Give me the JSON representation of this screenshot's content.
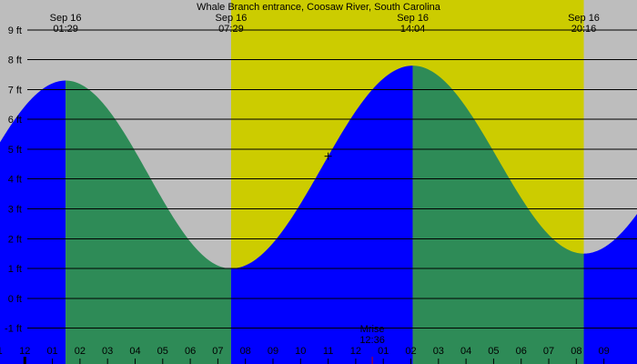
{
  "chart_data": {
    "type": "area",
    "title": "Whale Branch entrance, Coosaw River, South Carolina",
    "top_labels": [
      {
        "date": "Sep 16",
        "time": "01:29"
      },
      {
        "date": "Sep 16",
        "time": "07:29"
      },
      {
        "date": "Sep 16",
        "time": "14:04"
      },
      {
        "date": "Sep 16",
        "time": "20:16"
      }
    ],
    "x_unit": "hour of day (Sep 16)",
    "xlim": [
      -0.9,
      22.2
    ],
    "daylight": [
      7.48,
      20.27
    ],
    "y_unit": "ft",
    "ylim": [
      -2.2,
      10.0
    ],
    "y_ticks": [
      9,
      8,
      7,
      6,
      5,
      4,
      3,
      2,
      1,
      0,
      -1
    ],
    "y_tick_labels": [
      "9 ft",
      "8 ft",
      "7 ft",
      "6 ft",
      "5 ft",
      "4 ft",
      "3 ft",
      "2 ft",
      "1 ft",
      "0 ft",
      "-1 ft"
    ],
    "extrema": [
      {
        "hour": -4.7,
        "height": 0.9,
        "kind": "low"
      },
      {
        "hour": 1.48,
        "height": 7.3,
        "kind": "high"
      },
      {
        "hour": 7.48,
        "height": 1.0,
        "kind": "low"
      },
      {
        "hour": 14.07,
        "height": 7.8,
        "kind": "high"
      },
      {
        "hour": 20.27,
        "height": 1.5,
        "kind": "low"
      },
      {
        "hour": 26.4,
        "height": 7.4,
        "kind": "high"
      }
    ],
    "x_tick_labels": [
      "11",
      "12",
      "01",
      "02",
      "03",
      "04",
      "05",
      "06",
      "07",
      "08",
      "09",
      "10",
      "11",
      "12",
      "01",
      "02",
      "03",
      "04",
      "05",
      "06",
      "07",
      "08",
      "09"
    ],
    "x_tick_hours": [
      -1,
      0,
      1,
      2,
      3,
      4,
      5,
      6,
      7,
      8,
      9,
      10,
      11,
      12,
      13,
      14,
      15,
      16,
      17,
      18,
      19,
      20,
      21
    ],
    "moonrise": {
      "label": "Mrise",
      "time": "12:36",
      "hour": 12.6
    },
    "current_marker_hour": 11.0,
    "colors": {
      "night": "#bdbdbd",
      "day": "#cccc00",
      "rising": "#0000ff",
      "falling": "#2e8b57",
      "grid": "#000000",
      "moonrise": "#cc0000"
    }
  }
}
